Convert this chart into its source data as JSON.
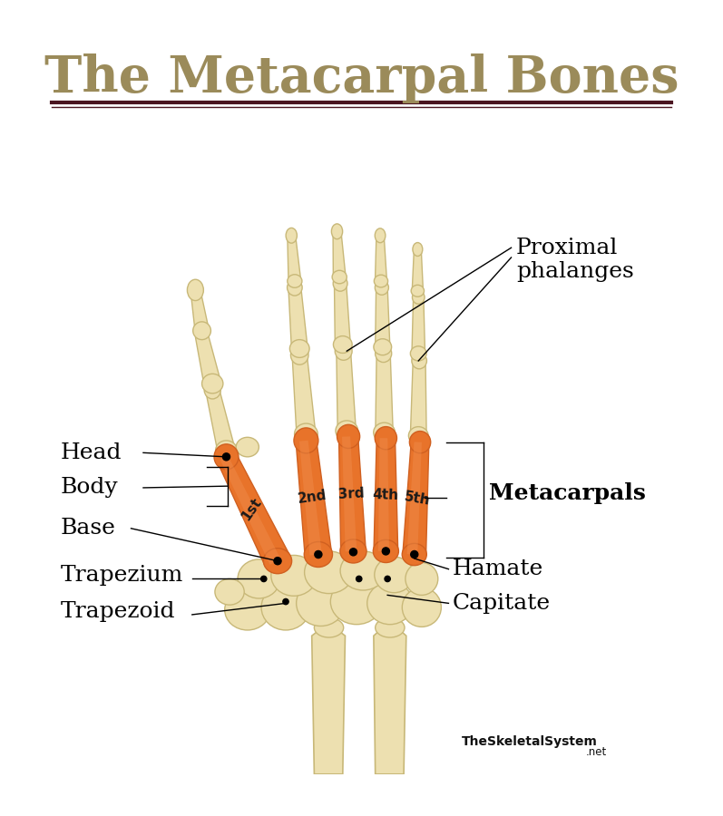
{
  "title": "The Metacarpal Bones",
  "title_color": "#9B8B5A",
  "title_fontsize": 40,
  "bg_color": "#FFFFFF",
  "separator_color": "#4A1520",
  "bone_cream": "#EDE0B0",
  "bone_light": "#F5EDD0",
  "bone_shadow": "#C8B878",
  "bone_dark": "#B8A050",
  "metacarpal_orange": "#E8732A",
  "metacarpal_mid": "#D06020",
  "metacarpal_light": "#F09050",
  "label_color": "#000000",
  "watermark_bold": "TheSkeletalSystem",
  "watermark_light": ".net"
}
